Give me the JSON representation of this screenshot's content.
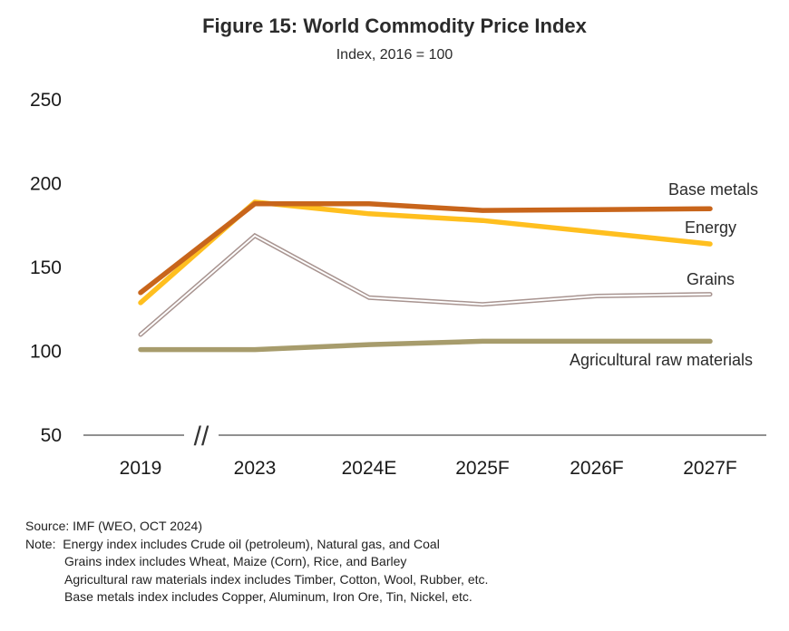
{
  "header": {
    "title": "Figure 15: World Commodity Price Index",
    "subtitle": "Index, 2016 = 100"
  },
  "chart_data": {
    "type": "line",
    "title": "Figure 15: World Commodity Price Index",
    "subtitle": "Index, 2016 = 100",
    "xlabel": "",
    "ylabel": "",
    "categories": [
      "2019",
      "2023",
      "2024E",
      "2025F",
      "2026F",
      "2027F"
    ],
    "axis_break_between": [
      "2019",
      "2023"
    ],
    "axis_break_symbol": "//",
    "ylim": [
      50,
      250
    ],
    "yticks": [
      50,
      100,
      150,
      200,
      250
    ],
    "grid": false,
    "legend": "inline labels at right end of each series",
    "series": [
      {
        "name": "Base metals",
        "color": "#C8651B",
        "style": "solid",
        "values": [
          135,
          188,
          188,
          184,
          184.5,
          185
        ]
      },
      {
        "name": "Energy",
        "color": "#FFBF1F",
        "style": "solid",
        "values": [
          129,
          189,
          182,
          178,
          171,
          164
        ]
      },
      {
        "name": "Grains",
        "color": "#A89490",
        "style": "double",
        "values": [
          110,
          169,
          132,
          128,
          133,
          134
        ]
      },
      {
        "name": "Agricultural raw materials",
        "color": "#A79C6C",
        "style": "solid",
        "values": [
          101,
          101,
          104,
          106,
          106,
          106
        ]
      }
    ]
  },
  "footnotes": {
    "source": "Source: IMF (WEO, OCT 2024)",
    "note_label": "Note:",
    "notes": [
      "Energy index includes Crude oil (petroleum), Natural gas, and Coal",
      "Grains index includes Wheat, Maize (Corn), Rice, and Barley",
      "Agricultural raw materials index includes Timber, Cotton, Wool, Rubber, etc.",
      "Base metals index includes Copper, Aluminum, Iron Ore, Tin, Nickel, etc."
    ]
  }
}
